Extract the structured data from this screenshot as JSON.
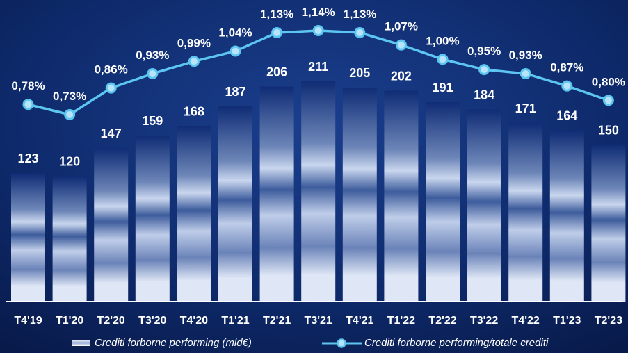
{
  "chart_data": {
    "type": "bar+line",
    "categories": [
      "T4'19",
      "T1'20",
      "T2'20",
      "T3'20",
      "T4'20",
      "T1'21",
      "T2'21",
      "T3'21",
      "T4'21",
      "T1'22",
      "T2'22",
      "T3'22",
      "T4'22",
      "T1'23",
      "T2'23"
    ],
    "series": [
      {
        "name": "Crediti forborne performing (mld€)",
        "type": "bar",
        "values": [
          123,
          120,
          147,
          159,
          168,
          187,
          206,
          211,
          205,
          202,
          191,
          184,
          171,
          164,
          150
        ],
        "labels": [
          "123",
          "120",
          "147",
          "159",
          "168",
          "187",
          "206",
          "211",
          "205",
          "202",
          "191",
          "184",
          "171",
          "164",
          "150"
        ]
      },
      {
        "name": "Crediti forborne performing/totale crediti",
        "type": "line",
        "values": [
          0.78,
          0.73,
          0.86,
          0.93,
          0.99,
          1.04,
          1.13,
          1.14,
          1.13,
          1.07,
          1.0,
          0.95,
          0.93,
          0.87,
          0.8
        ],
        "labels": [
          "0,78%",
          "0,73%",
          "0,86%",
          "0,93%",
          "0,99%",
          "1,04%",
          "1,13%",
          "1,14%",
          "1,13%",
          "1,07%",
          "1,00%",
          "0,95%",
          "0,93%",
          "0,87%",
          "0,80%"
        ]
      }
    ],
    "colors": {
      "line": "#5cc6f0",
      "bar_top": "#0f2c75",
      "bar_bottom": "#dfe7f6",
      "text": "#ffffff"
    },
    "legend": {
      "position": "bottom",
      "bar_label": "Crediti forborne performing (mld€)",
      "line_label": "Crediti forborne performing/totale crediti"
    }
  }
}
